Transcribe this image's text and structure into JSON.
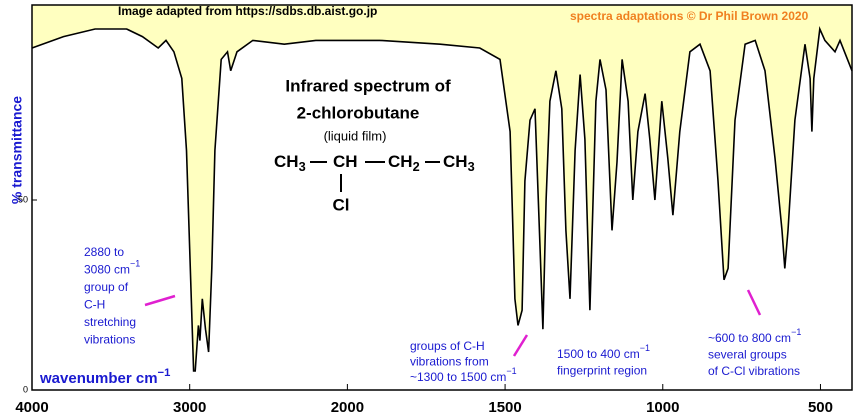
{
  "chart_data": {
    "type": "line",
    "credit": "Image adapted from https://sdbs.db.aist.go.jp",
    "copyright": "spectra adaptations © Dr Phil Brown 2020",
    "title": "Infrared spectrum of",
    "compound": "2-chlorobutane",
    "subtitle": "(liquid film)",
    "formula": {
      "groups": [
        {
          "text": "CH",
          "sub": "3"
        },
        {
          "text": "CH"
        },
        {
          "text": "CH",
          "sub": "2"
        },
        {
          "text": "CH",
          "sub": "3"
        }
      ],
      "substituent": "Cl"
    },
    "y_label": "% transmittance",
    "x_label": {
      "text": "wavenumber  cm",
      "sup": "−1"
    },
    "xlim": [
      4000,
      400
    ],
    "x_scale_change": {
      "at": 2000,
      "factor": 2
    },
    "xticks": [
      4000,
      3000,
      2000,
      1500,
      1000,
      500
    ],
    "ylim": [
      0,
      100
    ],
    "yticks": [
      0,
      50
    ],
    "line_color": "#000000",
    "fill_color": "#ffffc0",
    "x": [
      4000,
      3800,
      3600,
      3400,
      3300,
      3200,
      3150,
      3100,
      3050,
      3020,
      3000,
      2975,
      2965,
      2945,
      2935,
      2920,
      2900,
      2880,
      2860,
      2840,
      2800,
      2760,
      2740,
      2700,
      2600,
      2400,
      2200,
      2000,
      1897,
      1706,
      1580,
      1516,
      1484,
      1469,
      1459,
      1446,
      1437,
      1421,
      1405,
      1389,
      1380,
      1370,
      1358,
      1339,
      1320,
      1307,
      1294,
      1278,
      1262,
      1247,
      1231,
      1212,
      1199,
      1180,
      1161,
      1145,
      1129,
      1110,
      1095,
      1079,
      1056,
      1041,
      1025,
      1003,
      984,
      968,
      946,
      914,
      882,
      850,
      825,
      806,
      793,
      771,
      739,
      707,
      676,
      644,
      622,
      613,
      603,
      581,
      549,
      533,
      527,
      521,
      502,
      486,
      454,
      438,
      400
    ],
    "values": [
      90,
      93,
      95,
      95,
      93,
      90,
      92,
      89,
      82,
      63,
      37,
      5,
      5,
      17,
      13,
      24,
      16,
      10,
      32,
      63,
      87,
      89,
      84,
      89,
      92,
      91,
      92,
      92,
      92,
      91,
      90,
      87,
      68,
      24,
      17,
      21,
      55,
      71,
      74,
      37,
      16,
      50,
      76,
      84,
      74,
      42,
      24,
      63,
      83,
      66,
      21,
      76,
      87,
      79,
      42,
      60,
      87,
      76,
      50,
      68,
      78,
      66,
      50,
      76,
      61,
      46,
      68,
      89,
      91,
      84,
      55,
      29,
      32,
      71,
      91,
      92,
      84,
      61,
      42,
      32,
      42,
      71,
      91,
      82,
      68,
      82,
      95,
      92,
      89,
      92,
      84
    ],
    "annotations": [
      {
        "color": "#1a1ad0",
        "lines": [
          "2880 to",
          {
            "text": "3080 cm",
            "sup": "−1"
          },
          "group of",
          "C-H",
          "stretching",
          "vibrations"
        ]
      },
      {
        "color": "#1a1ad0",
        "lines": [
          "groups of C-H",
          "vibrations from",
          {
            "text": "~1300 to 1500 cm",
            "sup": "−1"
          }
        ]
      },
      {
        "color": "#1a1ad0",
        "lines": [
          {
            "text": "1500 to 400 cm",
            "sup": "−1"
          },
          "fingerprint region"
        ]
      },
      {
        "color": "#1a1ad0",
        "lines": [
          {
            "text": "~600 to 800 cm",
            "sup": "−1"
          },
          "several groups",
          "of C-Cl vibrations"
        ]
      }
    ]
  }
}
